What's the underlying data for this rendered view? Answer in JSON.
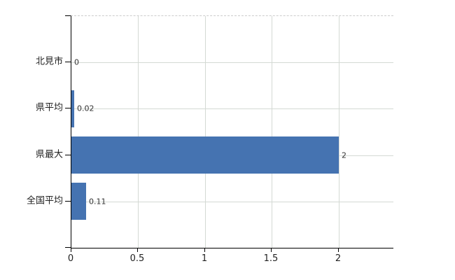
{
  "chart_data": {
    "type": "bar",
    "orientation": "horizontal",
    "title": "",
    "categories": [
      "北見市",
      "県平均",
      "県最大",
      "全国平均"
    ],
    "values": [
      0,
      0.02,
      2,
      0.11
    ],
    "value_labels": [
      "0",
      "0.02",
      "2",
      "0.11"
    ],
    "x_ticks": [
      0,
      0.5,
      1,
      1.5,
      2
    ],
    "x_tick_labels": [
      "0",
      "0.5",
      "1",
      "1.5",
      "2"
    ],
    "xlim": [
      0,
      2.41
    ],
    "grid": true,
    "legend": false,
    "colors": {
      "bar": "#4573b1",
      "gridline": "#d4d9d4",
      "plot_border": "#cccccc",
      "axis": "#000000",
      "text": "#333333"
    }
  }
}
